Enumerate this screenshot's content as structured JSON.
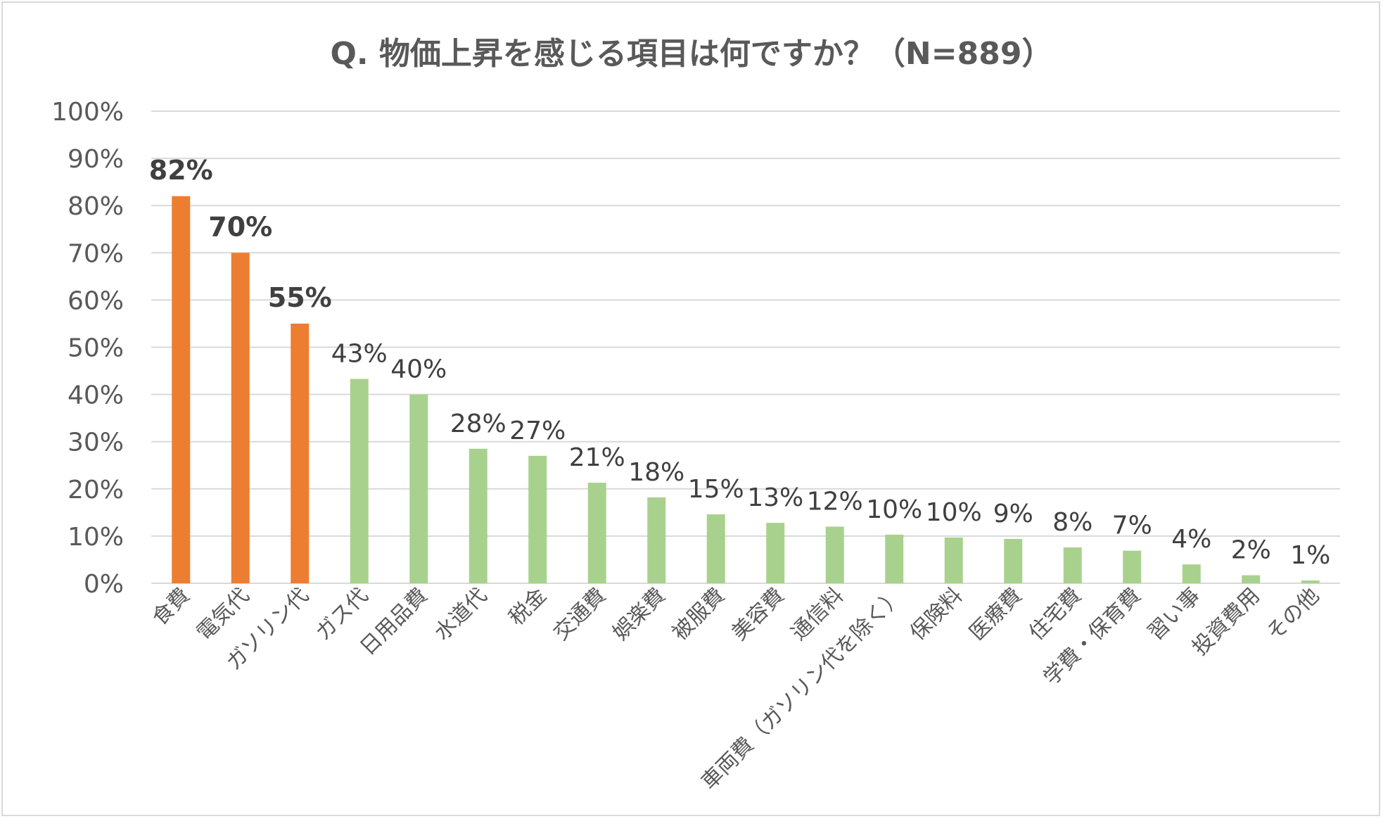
{
  "title": "Q. 物価上昇を感じる項目は何ですか？（N=889）",
  "chart_data": {
    "type": "bar",
    "title": "Q. 物価上昇を感じる項目は何ですか？（N=889）",
    "xlabel": "",
    "ylabel": "",
    "ylim": [
      0,
      100
    ],
    "y_ticks": [
      "0%",
      "10%",
      "20%",
      "30%",
      "40%",
      "50%",
      "60%",
      "70%",
      "80%",
      "90%",
      "100%"
    ],
    "grid": true,
    "legend": "none",
    "categories": [
      "食費",
      "電気代",
      "ガソリン代",
      "ガス代",
      "日用品費",
      "水道代",
      "税金",
      "交通費",
      "娯楽費",
      "被服費",
      "美容費",
      "通信料",
      "車両費（ガソリン代を除く）",
      "保険料",
      "医療費",
      "住宅費",
      "学費・保育費",
      "習い事",
      "投資費用",
      "その他"
    ],
    "values": [
      82,
      70,
      55,
      43.3,
      40,
      28.5,
      27,
      21.3,
      18.2,
      14.6,
      12.8,
      12,
      10.3,
      9.7,
      9.4,
      7.6,
      6.9,
      4.0,
      1.7,
      0.6
    ],
    "data_labels": [
      "82%",
      "70%",
      "55%",
      "43%",
      "40%",
      "28%",
      "27%",
      "21%",
      "18%",
      "15%",
      "13%",
      "12%",
      "10%",
      "10%",
      "9%",
      "8%",
      "7%",
      "4%",
      "2%",
      "1%"
    ],
    "highlight_count": 3,
    "colors": {
      "highlight": "#ED7D31",
      "normal": "#A9D18E",
      "grid": "#d9d9d9",
      "text": "#595959"
    }
  }
}
